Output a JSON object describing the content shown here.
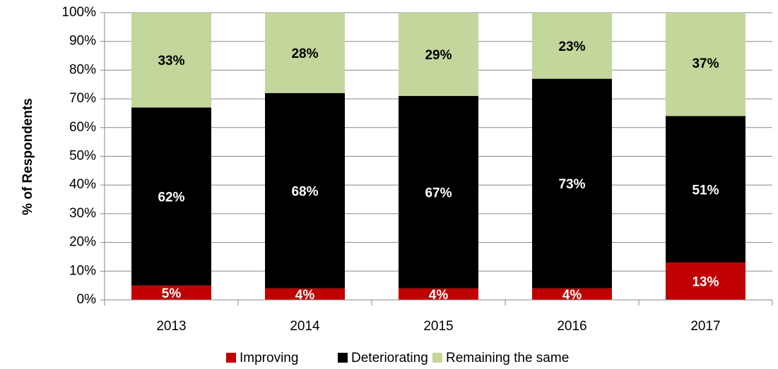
{
  "chart_data": {
    "type": "stacked_bar",
    "y_label": "% of Respondents",
    "categories": [
      "2013",
      "2014",
      "2015",
      "2016",
      "2017"
    ],
    "series": [
      {
        "name": "Improving",
        "color": "#c00000",
        "label_color": "#ffffff",
        "values": [
          5,
          4,
          4,
          4,
          13
        ],
        "value_labels": [
          "5%",
          "4%",
          "4%",
          "4%",
          "13%"
        ]
      },
      {
        "name": "Deteriorating",
        "color": "#000000",
        "label_color": "#ffffff",
        "values": [
          62,
          68,
          67,
          73,
          51
        ],
        "value_labels": [
          "62%",
          "68%",
          "67%",
          "73%",
          "51%"
        ]
      },
      {
        "name": "Remaining the same",
        "color": "#c3d69b",
        "label_color": "#000000",
        "values": [
          33,
          28,
          29,
          23,
          37
        ],
        "value_labels": [
          "33%",
          "28%",
          "29%",
          "23%",
          "37%"
        ]
      }
    ],
    "ylim": [
      0,
      100
    ],
    "yticks": [
      {
        "value": 0,
        "label": "0%"
      },
      {
        "value": 10,
        "label": "10%"
      },
      {
        "value": 20,
        "label": "20%"
      },
      {
        "value": 30,
        "label": "30%"
      },
      {
        "value": 40,
        "label": "40%"
      },
      {
        "value": 50,
        "label": "50%"
      },
      {
        "value": 60,
        "label": "60%"
      },
      {
        "value": 70,
        "label": "70%"
      },
      {
        "value": 80,
        "label": "80%"
      },
      {
        "value": 90,
        "label": "90%"
      },
      {
        "value": 100,
        "label": "100%"
      }
    ],
    "grid": true,
    "legend": "bottom"
  }
}
